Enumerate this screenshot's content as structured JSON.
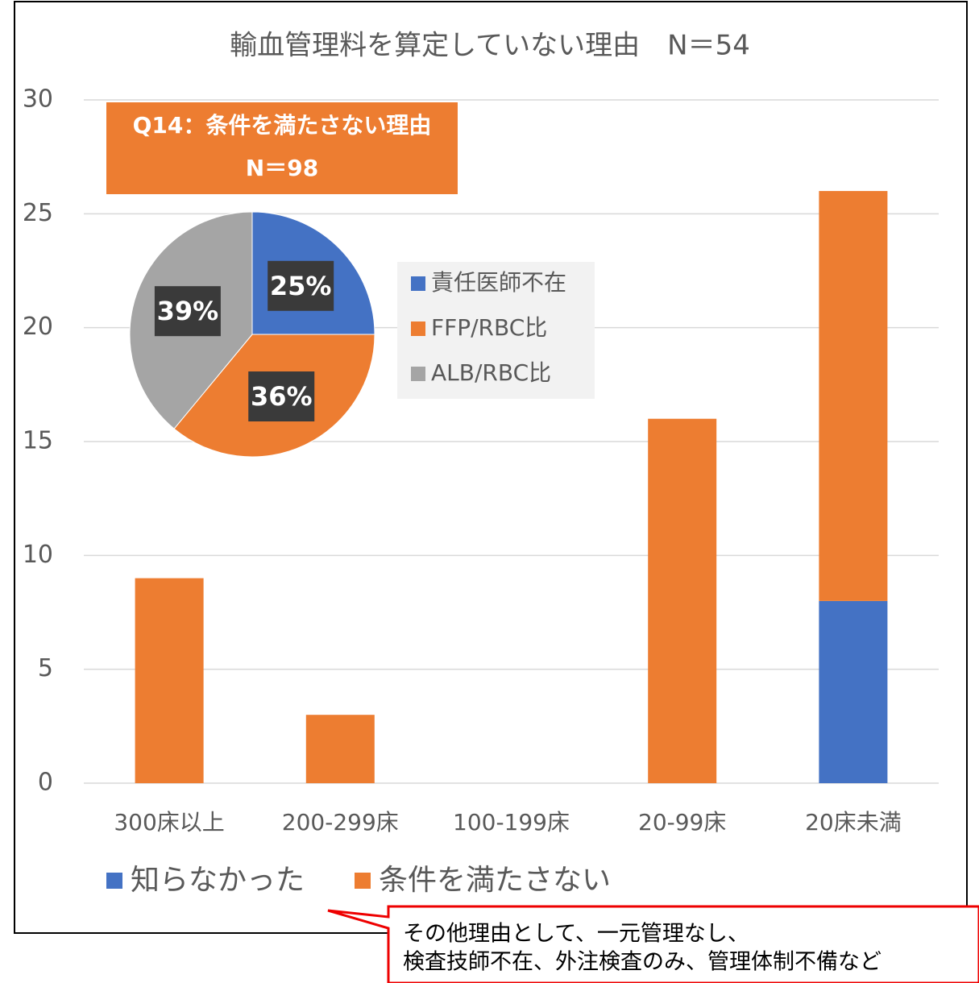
{
  "chart_data": [
    {
      "type": "bar",
      "title": "輸血管理料を算定していない理由　N＝54",
      "categories": [
        "300床以上",
        "200-299床",
        "100-199床",
        "20-99床",
        "20床未満"
      ],
      "series": [
        {
          "name": "知らなかった",
          "color": "#4472c4",
          "values": [
            0,
            0,
            0,
            0,
            8
          ]
        },
        {
          "name": "条件を満たさない",
          "color": "#ed7d31",
          "values": [
            9,
            3,
            0,
            16,
            18
          ]
        }
      ],
      "stacked": true,
      "ylim": [
        0,
        30
      ],
      "yticks": [
        0,
        5,
        10,
        15,
        20,
        25,
        30
      ],
      "grid": true,
      "annotation": [
        "その他理由として、一元管理なし、",
        "検査技師不在、外注検査のみ、管理体制不備など"
      ]
    },
    {
      "type": "pie",
      "title": [
        "Q14：条件を満たさない理由",
        "N＝98"
      ],
      "categories": [
        "責任医師不在",
        "FFP/RBC比",
        "ALB/RBC比"
      ],
      "values": [
        25,
        36,
        39
      ],
      "value_labels": [
        "25%",
        "36%",
        "39%"
      ],
      "colors": [
        "#4472c4",
        "#ed7d31",
        "#a5a5a5"
      ]
    }
  ]
}
